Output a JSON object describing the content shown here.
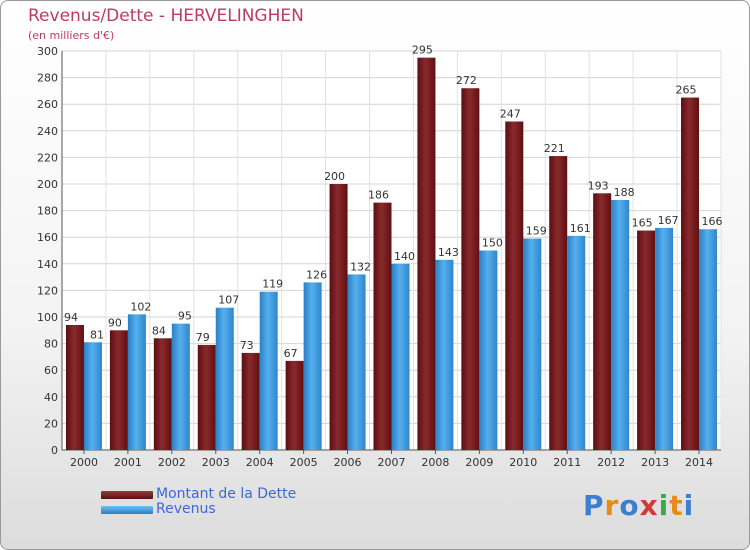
{
  "header": {
    "title": "Revenus/Dette - HERVELINGHEN",
    "subtitle": "(en milliers d'€)"
  },
  "colors": {
    "debt": "#7a1c1f",
    "revenue": "#3a98df",
    "title": "#c03a60",
    "legend_text": "#3c68d8"
  },
  "chart_data": {
    "type": "bar",
    "title": "Revenus/Dette - HERVELINGHEN",
    "subtitle": "(en milliers d'€)",
    "xlabel": "",
    "ylabel": "",
    "ylim": [
      0,
      300
    ],
    "yticks": [
      0,
      20,
      40,
      60,
      80,
      100,
      120,
      140,
      160,
      180,
      200,
      220,
      240,
      260,
      280,
      300
    ],
    "grid": true,
    "legend_position": "bottom-left",
    "categories": [
      "2000",
      "2001",
      "2002",
      "2003",
      "2004",
      "2005",
      "2006",
      "2007",
      "2008",
      "2009",
      "2010",
      "2011",
      "2012",
      "2013",
      "2014"
    ],
    "series": [
      {
        "name": "Montant de la Dette",
        "values": [
          94,
          90,
          84,
          79,
          73,
          67,
          200,
          186,
          295,
          272,
          247,
          221,
          193,
          165,
          265
        ]
      },
      {
        "name": "Revenus",
        "values": [
          81,
          102,
          95,
          107,
          119,
          126,
          132,
          140,
          143,
          150,
          159,
          161,
          188,
          167,
          166
        ]
      }
    ]
  },
  "legend": {
    "debt_label": "Montant de la Dette",
    "revenue_label": "Revenus"
  },
  "logo": {
    "letters": [
      "P",
      "r",
      "o",
      "x",
      "i",
      "t",
      "i"
    ],
    "colors": [
      "#3c7fd0",
      "#e88a1a",
      "#3c7fd0",
      "#d33a3a",
      "#3fa94a",
      "#e88a1a",
      "#3c7fd0"
    ]
  }
}
